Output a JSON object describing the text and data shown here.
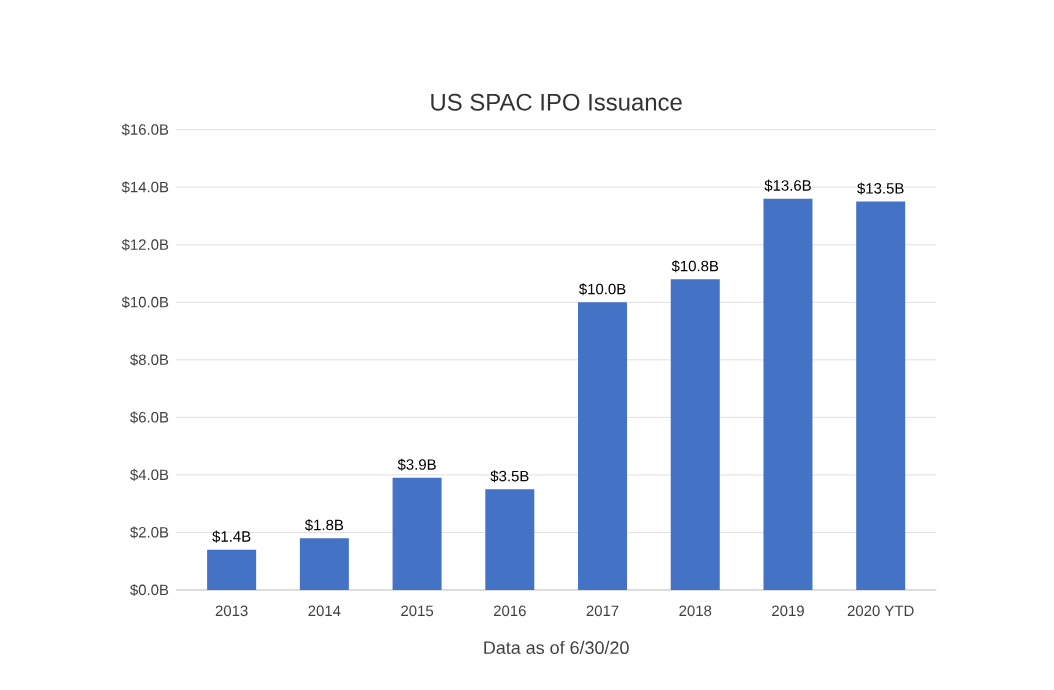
{
  "chart_data": {
    "type": "bar",
    "title": "US SPAC IPO Issuance",
    "categories": [
      "2013",
      "2014",
      "2015",
      "2016",
      "2017",
      "2018",
      "2019",
      "2020 YTD"
    ],
    "values": [
      1.4,
      1.8,
      3.9,
      3.5,
      10.0,
      10.8,
      13.6,
      13.5
    ],
    "value_labels": [
      "$1.4B",
      "$1.8B",
      "$3.9B",
      "$3.5B",
      "$10.0B",
      "$10.8B",
      "$13.6B",
      "$13.5B"
    ],
    "color": "#4472c4",
    "ylim": [
      0,
      16
    ],
    "yticks": [
      {
        "value": 0,
        "label": "$0.0B"
      },
      {
        "value": 2,
        "label": "$2.0B"
      },
      {
        "value": 4,
        "label": "$4.0B"
      },
      {
        "value": 6,
        "label": "$6.0B"
      },
      {
        "value": 8,
        "label": "$8.0B"
      },
      {
        "value": 10,
        "label": "$10.0B"
      },
      {
        "value": 12,
        "label": "$12.0B"
      },
      {
        "value": 14,
        "label": "$14.0B"
      },
      {
        "value": 16,
        "label": "$16.0B"
      }
    ],
    "grid": "y",
    "annotations": [
      "Data as of 6/30/20"
    ]
  }
}
